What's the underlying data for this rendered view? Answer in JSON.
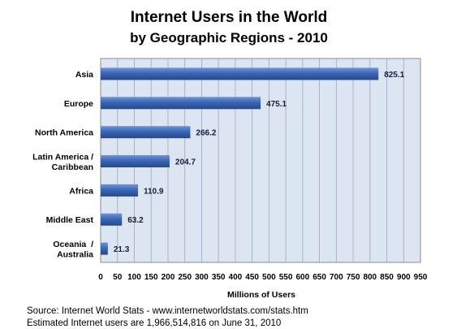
{
  "chart_data": {
    "type": "bar",
    "orientation": "horizontal",
    "title": "Internet Users in the World",
    "subtitle": "by Geographic Regions - 2010",
    "categories": [
      [
        "Asia"
      ],
      [
        "Europe"
      ],
      [
        "North America"
      ],
      [
        "Latin America /",
        "Caribbean"
      ],
      [
        "Africa"
      ],
      [
        "Middle East"
      ],
      [
        "Oceania  /",
        "Australia"
      ]
    ],
    "values": [
      825.1,
      475.1,
      266.2,
      204.7,
      110.9,
      63.2,
      21.3
    ],
    "data_labels": [
      "825.1",
      "475.1",
      "266.2",
      "204.7",
      "110.9",
      "63.2",
      "21.3"
    ],
    "xlabel": "Millions of Users",
    "ylabel": "",
    "xlim": [
      0,
      950
    ],
    "xticks": [
      0,
      50,
      100,
      150,
      200,
      250,
      300,
      350,
      400,
      450,
      500,
      550,
      600,
      650,
      700,
      750,
      800,
      850,
      900,
      950
    ],
    "grid": "vertical",
    "legend": "none",
    "colors": {
      "bar": "#3b66b8",
      "bar_light": "#6f95d8",
      "bar_dark": "#25488c",
      "plot_bg": "#dce6f2",
      "grid": "#9aa7c0"
    }
  },
  "footer": {
    "source": "Source: Internet World Stats - www.internetworldstats.com/stats.htm",
    "note": "Estimated Internet users are 1,966,514,816 on June 31, 2010"
  }
}
